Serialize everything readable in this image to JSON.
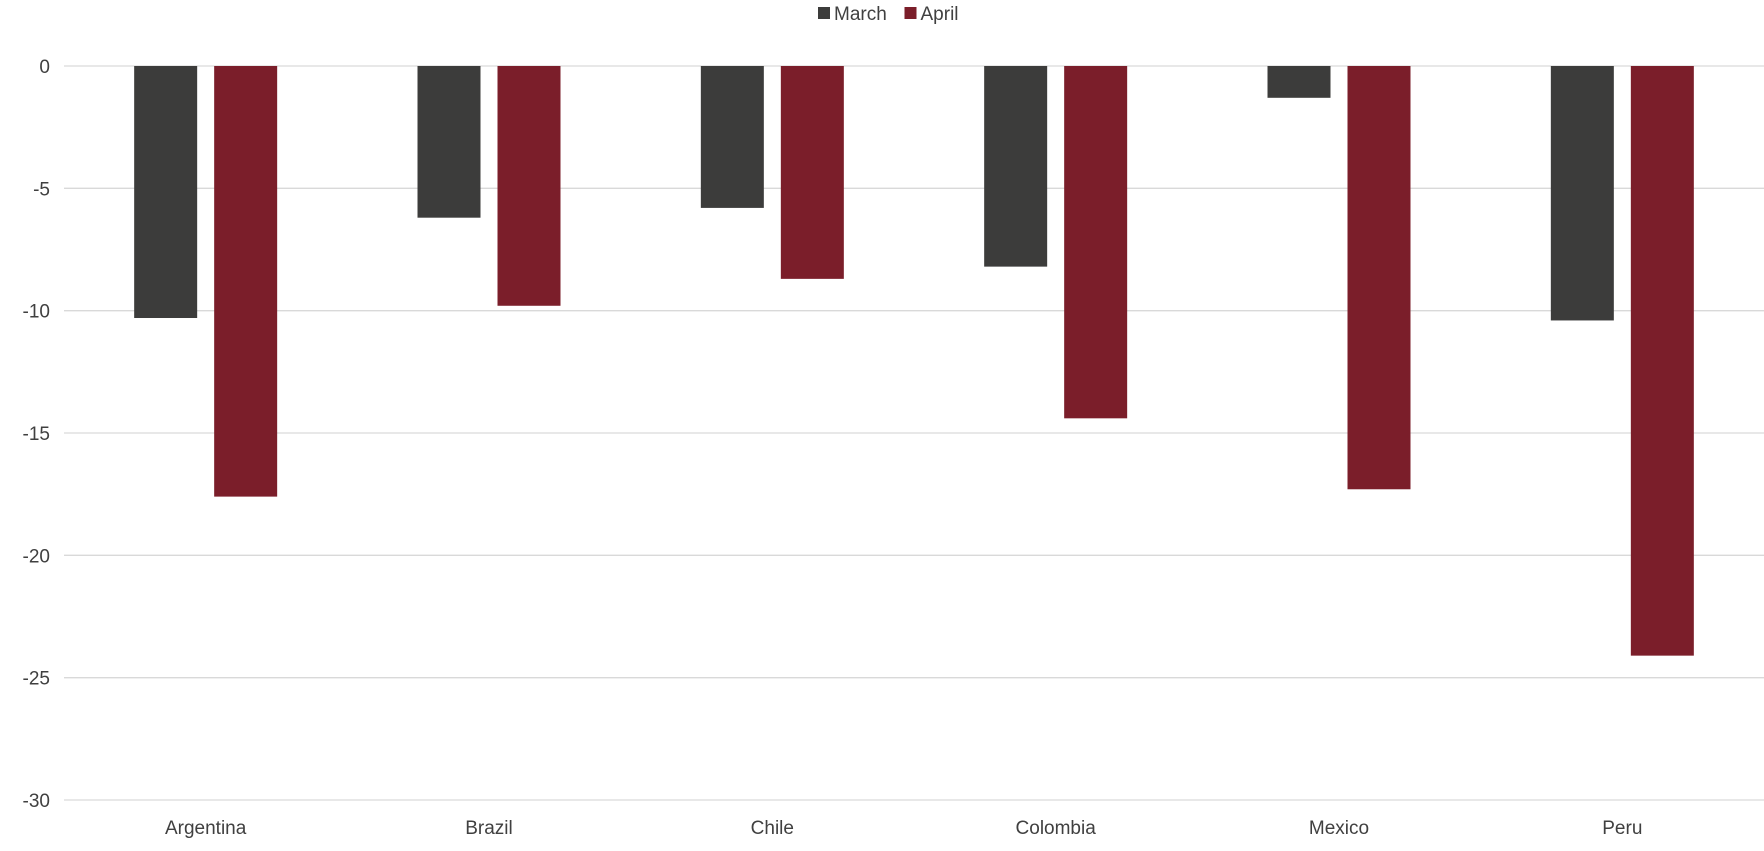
{
  "chart_data": {
    "type": "bar",
    "title": "",
    "xlabel": "",
    "ylabel": "",
    "categories": [
      "Argentina",
      "Brazil",
      "Chile",
      "Colombia",
      "Mexico",
      "Peru"
    ],
    "series": [
      {
        "name": "March",
        "color": "#3c3c3b",
        "values": [
          -10.3,
          -6.2,
          -5.8,
          -8.2,
          -1.3,
          -10.4
        ]
      },
      {
        "name": "April",
        "color": "#7b1e2a",
        "values": [
          -17.6,
          -9.8,
          -8.7,
          -14.4,
          -17.3,
          -24.1
        ]
      }
    ],
    "ylim": [
      -30,
      0
    ],
    "yticks": [
      0,
      -5,
      -10,
      -15,
      -20,
      -25,
      -30
    ],
    "ytick_labels": [
      "0",
      "-5",
      "-10",
      "-15",
      "-20",
      "-25",
      "-30"
    ],
    "grid": true,
    "legend_position": "top-center"
  }
}
